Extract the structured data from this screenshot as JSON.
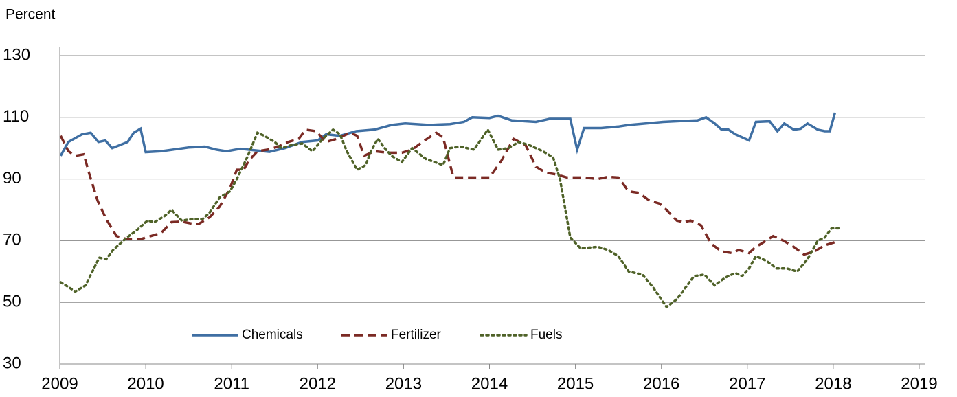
{
  "chart_data": {
    "type": "line",
    "y_label": "Percent",
    "xlim": [
      2009,
      2019
    ],
    "xticks": [
      2009,
      2010,
      2011,
      2012,
      2013,
      2014,
      2015,
      2016,
      2017,
      2018,
      2019
    ],
    "ylim": [
      30,
      130
    ],
    "yticks": [
      30,
      50,
      70,
      90,
      110,
      130
    ],
    "grid": true,
    "legend": "lower center",
    "series": [
      {
        "name": "Chemicals",
        "color": "#3f6fa3",
        "dash": "solid",
        "x": [
          2009.01,
          2009.1,
          2009.26,
          2009.36,
          2009.45,
          2009.53,
          2009.61,
          2009.79,
          2009.86,
          2009.94,
          2010.0,
          2010.18,
          2010.34,
          2010.5,
          2010.69,
          2010.82,
          2010.94,
          2011.1,
          2011.3,
          2011.44,
          2011.62,
          2011.82,
          2012.0,
          2012.1,
          2012.26,
          2012.45,
          2012.66,
          2012.86,
          2013.02,
          2013.3,
          2013.54,
          2013.7,
          2013.8,
          2014.0,
          2014.1,
          2014.26,
          2014.54,
          2014.7,
          2014.94,
          2015.02,
          2015.1,
          2015.3,
          2015.5,
          2015.62,
          2015.82,
          2016.02,
          2016.22,
          2016.42,
          2016.52,
          2016.62,
          2016.7,
          2016.78,
          2016.86,
          2016.94,
          2017.02,
          2017.1,
          2017.26,
          2017.35,
          2017.43,
          2017.54,
          2017.62,
          2017.7,
          2017.82,
          2017.9,
          2017.96,
          2018.02
        ],
        "values": [
          97.5,
          102,
          104.5,
          105,
          102,
          102.5,
          100,
          102,
          105,
          106.3,
          98.7,
          99,
          99.6,
          100.2,
          100.5,
          99.5,
          99,
          99.8,
          99.2,
          98.8,
          100,
          102,
          102.5,
          104.5,
          104,
          105.5,
          106,
          107.5,
          108,
          107.5,
          107.8,
          108.5,
          110,
          109.8,
          110.5,
          109,
          108.5,
          109.5,
          109.5,
          99.5,
          106.5,
          106.5,
          107,
          107.5,
          108,
          108.5,
          108.8,
          109,
          110,
          108,
          106,
          106,
          104.5,
          103.5,
          102.5,
          108.5,
          108.7,
          105.5,
          108,
          106,
          106.3,
          108,
          106,
          105.5,
          105.5,
          111.5
        ]
      },
      {
        "name": "Fertilizer",
        "color": "#7b2a24",
        "dash": "dashed",
        "x": [
          2009.01,
          2009.1,
          2009.18,
          2009.28,
          2009.34,
          2009.44,
          2009.54,
          2009.66,
          2009.78,
          2009.94,
          2010.06,
          2010.18,
          2010.3,
          2010.42,
          2010.54,
          2010.62,
          2010.74,
          2010.86,
          2010.98,
          2011.06,
          2011.14,
          2011.2,
          2011.3,
          2011.42,
          2011.54,
          2011.66,
          2011.78,
          2011.86,
          2011.98,
          2012.1,
          2012.22,
          2012.38,
          2012.46,
          2012.54,
          2012.66,
          2012.82,
          2012.98,
          2013.1,
          2013.22,
          2013.38,
          2013.46,
          2013.58,
          2013.74,
          2013.9,
          2014.0,
          2014.14,
          2014.28,
          2014.42,
          2014.54,
          2014.66,
          2014.78,
          2014.9,
          2015.1,
          2015.26,
          2015.38,
          2015.5,
          2015.62,
          2015.74,
          2015.86,
          2015.98,
          2016.06,
          2016.18,
          2016.26,
          2016.34,
          2016.46,
          2016.58,
          2016.7,
          2016.82,
          2016.9,
          2017.02,
          2017.1,
          2017.22,
          2017.3,
          2017.42,
          2017.54,
          2017.66,
          2017.78,
          2017.9,
          2018.02
        ],
        "values": [
          104,
          99,
          97.5,
          98,
          92,
          83,
          77,
          71.5,
          70.5,
          70.5,
          71.5,
          72.5,
          76,
          76.2,
          75.5,
          75.5,
          77.5,
          81,
          87,
          93,
          93,
          96,
          99,
          99.5,
          100.5,
          102,
          103,
          106,
          105.5,
          102,
          103,
          105,
          104,
          97.5,
          99,
          98.5,
          98.5,
          99.5,
          102,
          105,
          103.5,
          90.5,
          90.5,
          90.5,
          90.5,
          96,
          103,
          101,
          94,
          92,
          91.5,
          90.5,
          90.5,
          90,
          90.7,
          90.5,
          86,
          85.5,
          83,
          82,
          80,
          76.5,
          76,
          76.5,
          75,
          69,
          66.5,
          66,
          67,
          66,
          68,
          70,
          71.5,
          70,
          68,
          65.5,
          66.5,
          68.5,
          69.5
        ]
      },
      {
        "name": "Fuels",
        "color": "#4f6228",
        "dash": "dotted",
        "x": [
          2009.01,
          2009.1,
          2009.18,
          2009.3,
          2009.38,
          2009.46,
          2009.54,
          2009.62,
          2009.78,
          2009.9,
          2010.02,
          2010.1,
          2010.22,
          2010.3,
          2010.42,
          2010.54,
          2010.66,
          2010.74,
          2010.86,
          2010.98,
          2011.06,
          2011.18,
          2011.3,
          2011.38,
          2011.5,
          2011.58,
          2011.7,
          2011.82,
          2011.94,
          2012.06,
          2012.18,
          2012.26,
          2012.34,
          2012.46,
          2012.56,
          2012.62,
          2012.7,
          2012.78,
          2012.86,
          2012.98,
          2013.1,
          2013.26,
          2013.46,
          2013.54,
          2013.66,
          2013.82,
          2013.98,
          2014.1,
          2014.22,
          2014.34,
          2014.46,
          2014.62,
          2014.74,
          2014.82,
          2014.94,
          2015.06,
          2015.26,
          2015.38,
          2015.5,
          2015.62,
          2015.78,
          2015.9,
          2016.06,
          2016.18,
          2016.3,
          2016.38,
          2016.5,
          2016.62,
          2016.74,
          2016.86,
          2016.94,
          2017.02,
          2017.1,
          2017.22,
          2017.34,
          2017.46,
          2017.58,
          2017.7,
          2017.82,
          2017.9,
          2017.98,
          2018.06
        ],
        "values": [
          56.5,
          55,
          53.5,
          55.5,
          60,
          64.5,
          64,
          67,
          71,
          73.5,
          76.5,
          76,
          78,
          80,
          76.5,
          77,
          77,
          79,
          84,
          86,
          90,
          97,
          105,
          104,
          102,
          100,
          101,
          101.5,
          99,
          103,
          106,
          104.5,
          99,
          93,
          94.5,
          99,
          103,
          100,
          97.5,
          95.5,
          100,
          96.5,
          94.5,
          100,
          100.5,
          99.5,
          106,
          99.5,
          100,
          102,
          101,
          99,
          97,
          90,
          71,
          67.5,
          68,
          67,
          65,
          60,
          59,
          55,
          48.5,
          51,
          55.5,
          58.5,
          59,
          55.5,
          58,
          59.5,
          58.5,
          61,
          65,
          63.5,
          61,
          61,
          60,
          64,
          70,
          71,
          74,
          74
        ]
      }
    ]
  }
}
